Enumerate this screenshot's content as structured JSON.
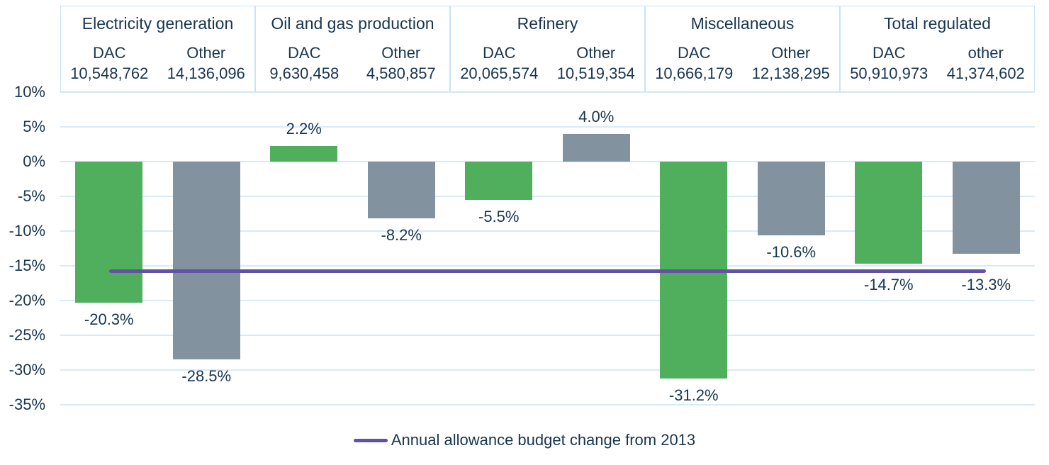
{
  "chart_data": {
    "type": "bar",
    "groups": [
      {
        "title": "Electricity generation",
        "columns": [
          {
            "label": "DAC",
            "total": "10,548,762",
            "value": -20.3,
            "value_label": "-20.3%",
            "series": "dac"
          },
          {
            "label": "Other",
            "total": "14,136,096",
            "value": -28.5,
            "value_label": "-28.5%",
            "series": "other"
          }
        ]
      },
      {
        "title": "Oil and gas production",
        "columns": [
          {
            "label": "DAC",
            "total": "9,630,458",
            "value": 2.2,
            "value_label": "2.2%",
            "series": "dac"
          },
          {
            "label": "Other",
            "total": "4,580,857",
            "value": -8.2,
            "value_label": "-8.2%",
            "series": "other"
          }
        ]
      },
      {
        "title": "Refinery",
        "columns": [
          {
            "label": "DAC",
            "total": "20,065,574",
            "value": -5.5,
            "value_label": "-5.5%",
            "series": "dac"
          },
          {
            "label": "Other",
            "total": "10,519,354",
            "value": 4.0,
            "value_label": "4.0%",
            "series": "other"
          }
        ]
      },
      {
        "title": "Miscellaneous",
        "columns": [
          {
            "label": "DAC",
            "total": "10,666,179",
            "value": -31.2,
            "value_label": "-31.2%",
            "series": "dac"
          },
          {
            "label": "Other",
            "total": "12,138,295",
            "value": -10.6,
            "value_label": "-10.6%",
            "series": "other"
          }
        ]
      },
      {
        "title": "Total regulated",
        "columns": [
          {
            "label": "DAC",
            "total": "50,910,973",
            "value": -14.7,
            "value_label": "-14.7%",
            "series": "dac"
          },
          {
            "label": "other",
            "total": "41,374,602",
            "value": -13.3,
            "value_label": "-13.3%",
            "series": "other"
          }
        ]
      }
    ],
    "y_axis": {
      "ticks": [
        10,
        5,
        0,
        -5,
        -10,
        -15,
        -20,
        -25,
        -30,
        -35
      ],
      "unit": "%",
      "ylim": [
        -35,
        10
      ],
      "grid": true
    },
    "reference_line": {
      "value": -15.8,
      "label": "Annual allowance budget change from 2013"
    },
    "legend": {
      "position": "bottom",
      "entries": [
        {
          "label": "Annual allowance budget change from 2013",
          "swatch": "line"
        }
      ]
    },
    "colors": {
      "dac_bar": "#4FAF5C",
      "other_bar": "#82929E",
      "reference_line": "#61539F",
      "gridline": "#D9EAF7",
      "header_border": "#C9E2F4",
      "text": "#183550"
    }
  }
}
